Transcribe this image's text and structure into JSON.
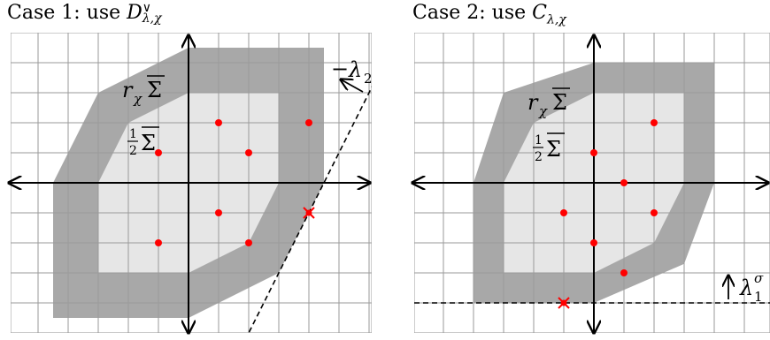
{
  "panels": [
    {
      "title_prefix": "Case 1:  use ",
      "title_symbol": "D",
      "title_sup": "∨",
      "title_sub": "λ,χ",
      "outer_label": "rχΣ̄",
      "outer_label_main": "r",
      "outer_label_sub": "χ",
      "outer_label_sigma": "Σ",
      "inner_label_num": "1",
      "inner_label_den": "2",
      "inner_label_sigma": "Σ",
      "line_label": "−λ₂",
      "line_label_minus": "−",
      "line_label_sym": "λ",
      "line_label_sub": "2",
      "outer_poly": [
        [
          -4.5,
          -4.5
        ],
        [
          -4.5,
          0
        ],
        [
          -3,
          3
        ],
        [
          0,
          4.5
        ],
        [
          4.5,
          4.5
        ],
        [
          4.5,
          0
        ],
        [
          3,
          -3
        ],
        [
          0,
          -4.5
        ]
      ],
      "inner_poly": [
        [
          -3,
          -3
        ],
        [
          -3,
          0
        ],
        [
          -2,
          2
        ],
        [
          0,
          3
        ],
        [
          3,
          3
        ],
        [
          3,
          0
        ],
        [
          2,
          -2
        ],
        [
          0,
          -3
        ]
      ],
      "dots": [
        [
          -1,
          1
        ],
        [
          1,
          2
        ],
        [
          2,
          1
        ],
        [
          4,
          2
        ],
        [
          1,
          -1
        ],
        [
          -1,
          -2
        ],
        [
          2,
          -2
        ]
      ],
      "cross": [
        4,
        -1
      ]
    },
    {
      "title_prefix": "Case 2:  use ",
      "title_symbol": "C",
      "title_sub": "λ,χ",
      "outer_label_main": "r",
      "outer_label_sub": "χ",
      "outer_label_sigma": "Σ",
      "inner_label_num": "1",
      "inner_label_den": "2",
      "inner_label_sigma": "Σ",
      "line_label_sym": "λ",
      "line_label_sup": "σ",
      "line_label_sub": "1",
      "outer_poly": [
        [
          -4,
          -4
        ],
        [
          -4,
          0
        ],
        [
          -3,
          3
        ],
        [
          0,
          4
        ],
        [
          4,
          4
        ],
        [
          4,
          0
        ],
        [
          3,
          -2.7
        ],
        [
          0,
          -4
        ]
      ],
      "inner_poly": [
        [
          -3,
          -3
        ],
        [
          -3,
          0
        ],
        [
          -2,
          2
        ],
        [
          0,
          3
        ],
        [
          3,
          3
        ],
        [
          3,
          0
        ],
        [
          2,
          -2
        ],
        [
          0,
          -3
        ]
      ],
      "dots": [
        [
          2,
          2
        ],
        [
          0,
          1
        ],
        [
          1,
          0
        ],
        [
          -1,
          -1
        ],
        [
          2,
          -1
        ],
        [
          0,
          -2
        ],
        [
          1,
          -3
        ]
      ],
      "cross": [
        -1,
        -4
      ]
    }
  ],
  "colors": {
    "outer_fill": "#a8a8a8",
    "inner_fill": "#e6e6e6",
    "grid": "#9a9a9a",
    "dot": "#ff0000",
    "axis": "#000000"
  }
}
